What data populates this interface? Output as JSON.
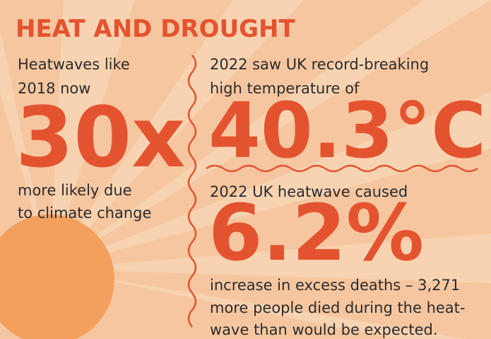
{
  "title": "HEAT AND DROUGHT",
  "left": {
    "intro": [
      "Heatwaves like",
      "2018 now"
    ],
    "figure": "30x",
    "outro": [
      "more likely due",
      "to climate change"
    ]
  },
  "right_top": {
    "intro": [
      "2022 saw UK record-breaking",
      "high temperature of"
    ],
    "figure": "40.3°C"
  },
  "right_bottom": {
    "intro": [
      "2022 UK heatwave caused"
    ],
    "figure": "6.2%",
    "outro": [
      "increase in excess deaths – 3,271",
      "more people died during the heat-",
      "wave than would be expected."
    ]
  }
}
